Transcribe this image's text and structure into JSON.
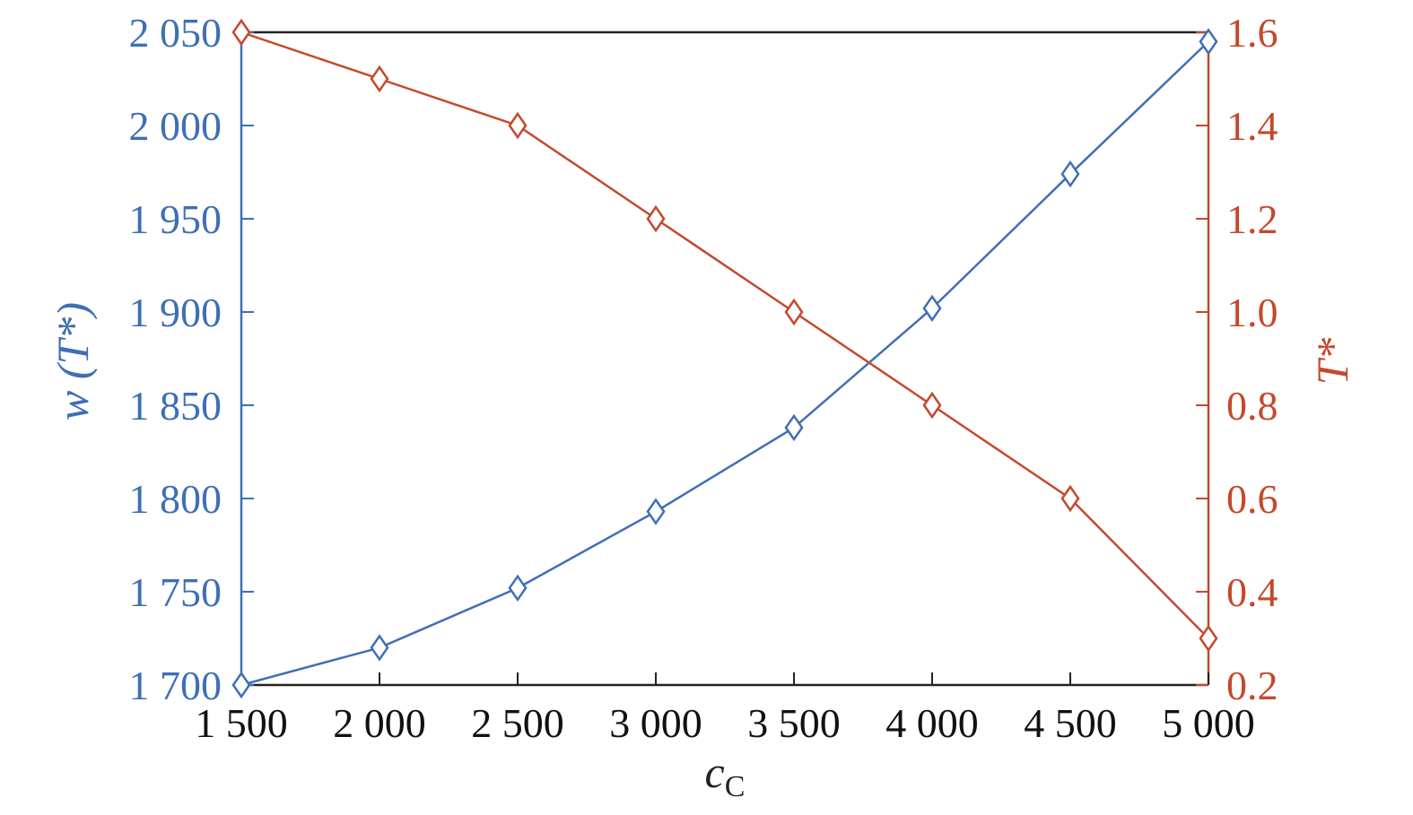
{
  "chart_data": {
    "type": "line",
    "title": "",
    "xlabel": {
      "main": "c",
      "sub": "C"
    },
    "ylabel_left": "w (T*)",
    "ylabel_right": "T*",
    "x": [
      1500,
      2000,
      2500,
      3000,
      3500,
      4000,
      4500,
      5000
    ],
    "x_tick_labels": [
      "1 500",
      "2 000",
      "2 500",
      "3 000",
      "3 500",
      "4 000",
      "4 500",
      "5 000"
    ],
    "xlim": [
      1500,
      5000
    ],
    "y_left": {
      "lim": [
        1700,
        2050
      ],
      "ticks": [
        1700,
        1750,
        1800,
        1850,
        1900,
        1950,
        2000,
        2050
      ],
      "tick_labels": [
        "1 700",
        "1 750",
        "1 800",
        "1 850",
        "1 900",
        "1 950",
        "2 000",
        "2 050"
      ],
      "color": "#3f6fb5"
    },
    "y_right": {
      "lim": [
        0.2,
        1.6
      ],
      "ticks": [
        0.2,
        0.4,
        0.6,
        0.8,
        1.0,
        1.2,
        1.4,
        1.6
      ],
      "tick_labels": [
        "0.2",
        "0.4",
        "0.6",
        "0.8",
        "1.0",
        "1.2",
        "1.4",
        "1.6"
      ],
      "color": "#c4492c"
    },
    "series": [
      {
        "axis": "left",
        "color": "#3f6fb5",
        "marker": "diamond",
        "values": [
          1700,
          1720,
          1752,
          1793,
          1838,
          1902,
          1974,
          2045
        ]
      },
      {
        "axis": "right",
        "color": "#c4492c",
        "marker": "diamond",
        "values": [
          1.6,
          1.5,
          1.4,
          1.2,
          1.0,
          0.8,
          0.6,
          0.3
        ]
      }
    ],
    "grid": false,
    "legend": "none"
  }
}
